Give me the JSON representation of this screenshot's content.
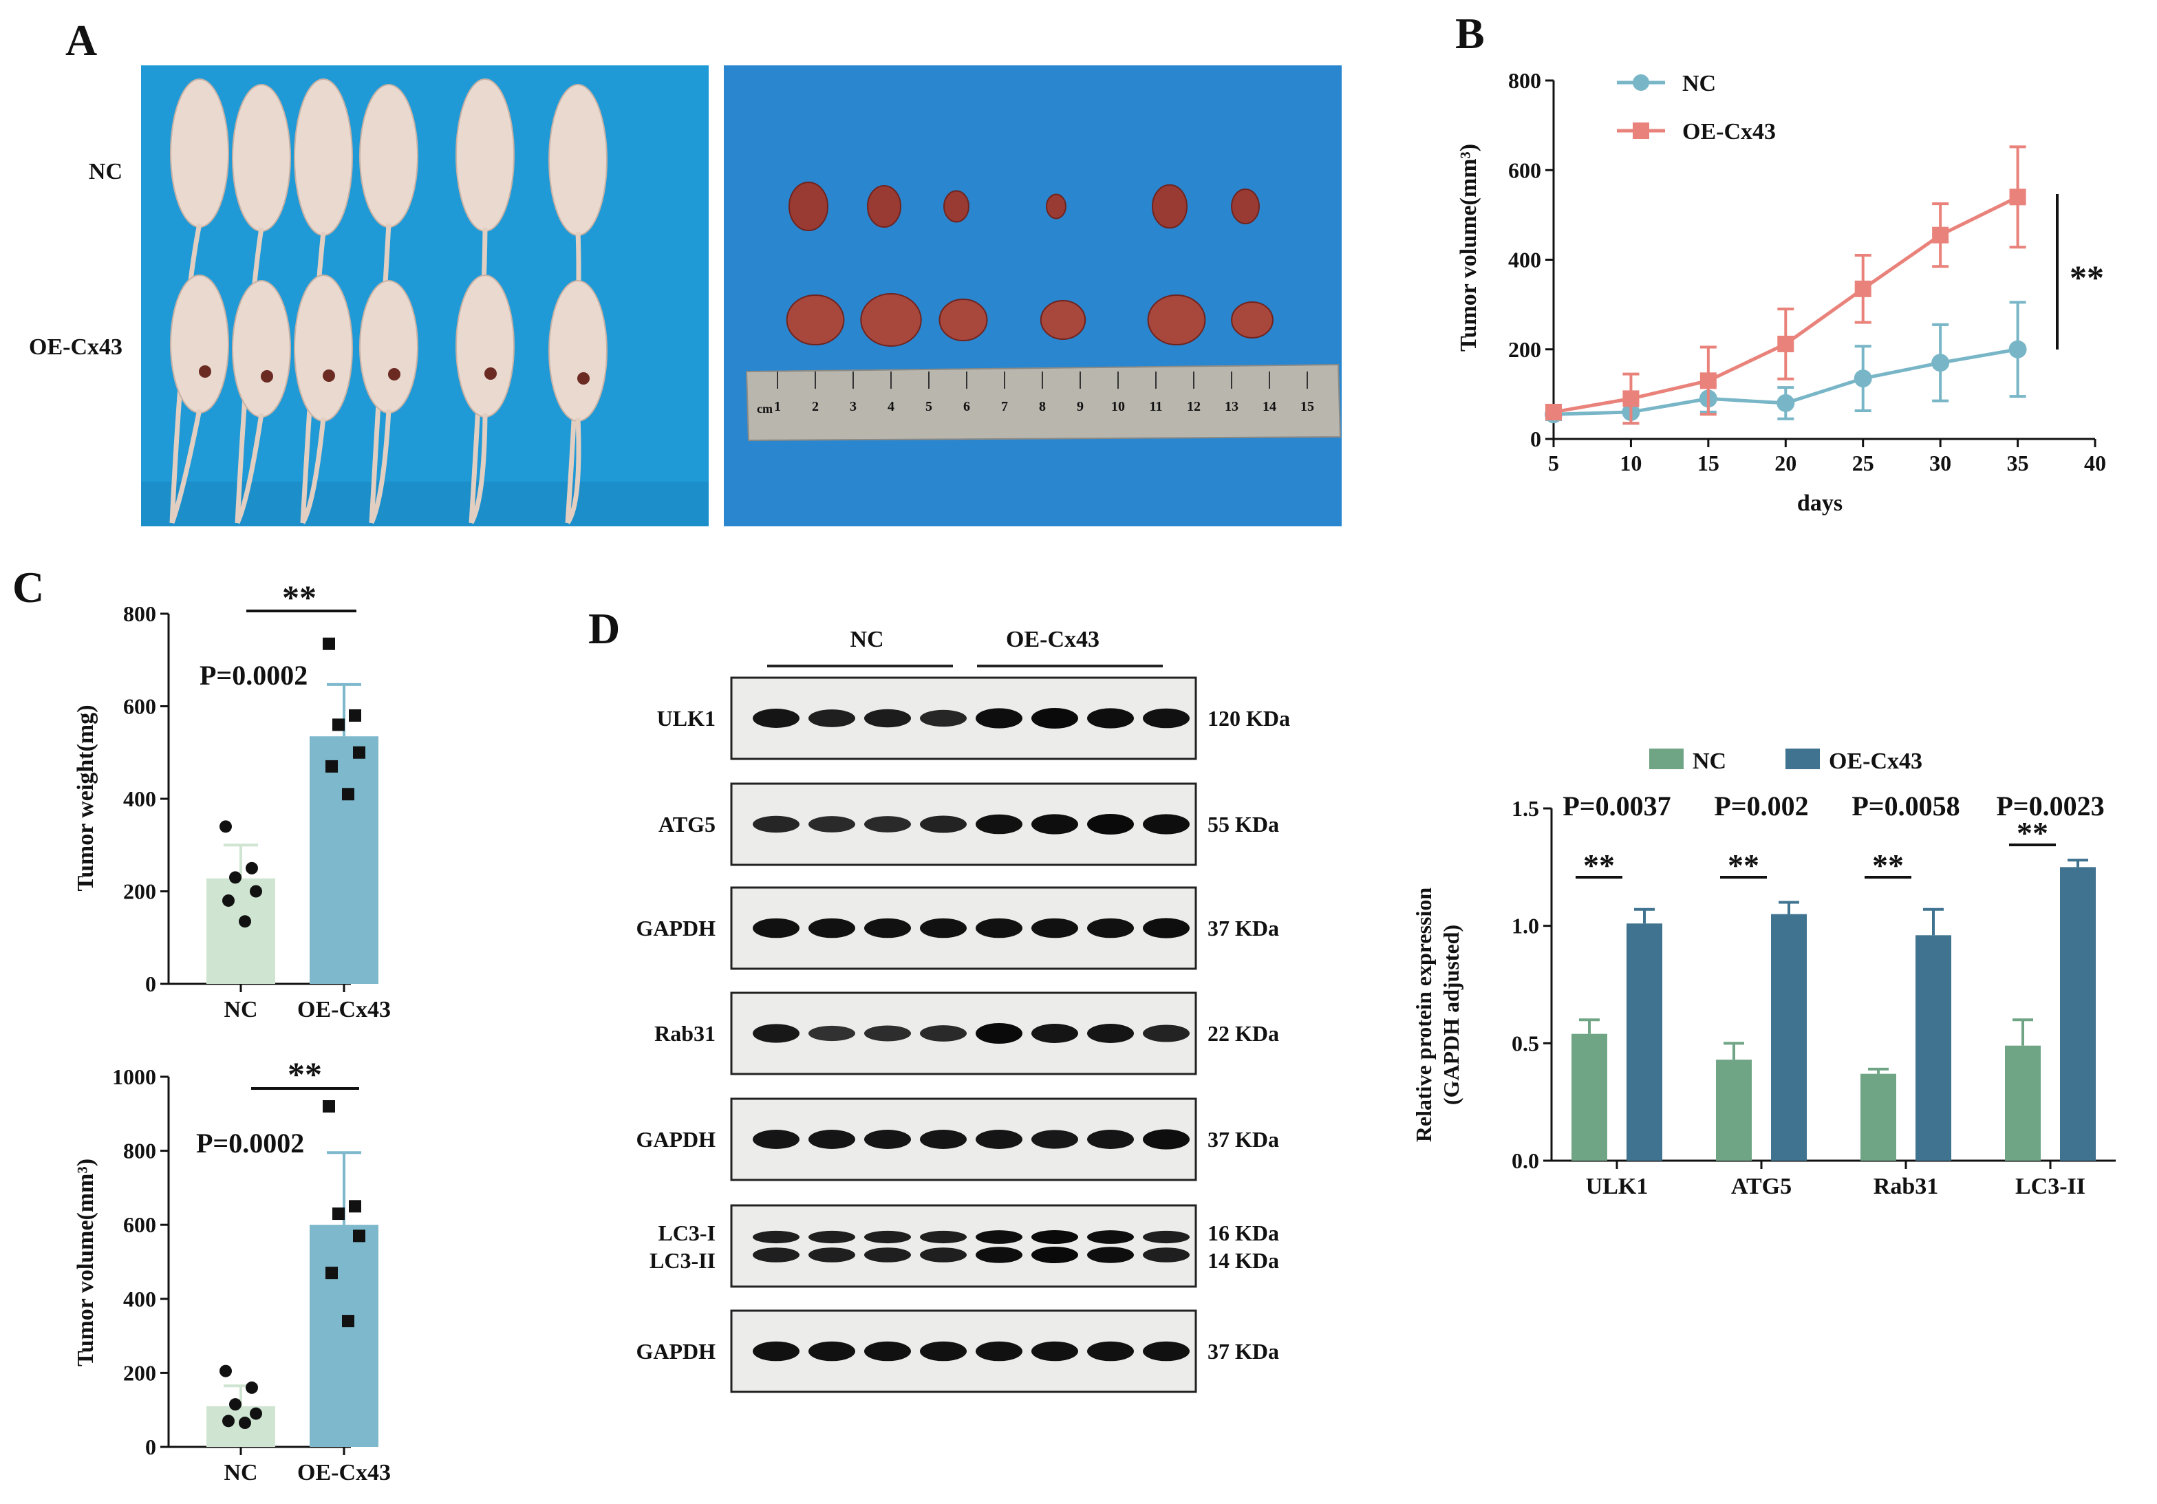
{
  "panels": {
    "A": "A",
    "B": "B",
    "C": "C",
    "D": "D"
  },
  "panel_a": {
    "row_labels": [
      "NC",
      "OE-Cx43"
    ],
    "ruler_numbers": [
      "1",
      "2",
      "3",
      "4",
      "5",
      "6",
      "7",
      "8",
      "9",
      "10",
      "11",
      "12",
      "13",
      "14",
      "15"
    ],
    "ruler_unit": "cm"
  },
  "colors": {
    "nc_line": "#78b6c7",
    "oe_line": "#e9827a",
    "nc_bar_c": "#cfe5d2",
    "oe_bar_c": "#7db8cc",
    "nc_bar_d": "#6fa485",
    "oe_bar_d": "#3f7390",
    "photo_bg": "#1f9ad6",
    "bench_bg": "#2a86cf"
  },
  "chart_data": [
    {
      "id": "B",
      "type": "line",
      "xlabel": "days",
      "ylabel": "Tumor volume(mm³)",
      "xlim": [
        5,
        40
      ],
      "ylim": [
        0,
        800
      ],
      "xticks": [
        5,
        10,
        15,
        20,
        25,
        30,
        35,
        40
      ],
      "yticks": [
        0,
        200,
        400,
        600,
        800
      ],
      "significance": "**",
      "series": [
        {
          "name": "NC",
          "x": [
            5,
            10,
            15,
            20,
            25,
            30,
            35
          ],
          "values": [
            55,
            60,
            90,
            80,
            135,
            170,
            200
          ],
          "err": [
            12,
            25,
            30,
            35,
            72,
            85,
            105
          ]
        },
        {
          "name": "OE-Cx43",
          "x": [
            5,
            10,
            15,
            20,
            25,
            30,
            35
          ],
          "values": [
            60,
            90,
            130,
            212,
            335,
            455,
            540
          ],
          "err": [
            15,
            55,
            75,
            78,
            75,
            70,
            112
          ]
        }
      ]
    },
    {
      "id": "C1",
      "type": "bar",
      "ylabel": "Tumor weight(mg)",
      "ylim": [
        0,
        800
      ],
      "yticks": [
        0,
        200,
        400,
        600,
        800
      ],
      "categories": [
        "NC",
        "OE-Cx43"
      ],
      "values": [
        228,
        535
      ],
      "err": [
        72,
        112
      ],
      "points": [
        [
          340,
          250,
          230,
          200,
          180,
          135
        ],
        [
          735,
          580,
          560,
          500,
          470,
          410
        ]
      ],
      "pvalue": "P=0.0002",
      "significance": "**"
    },
    {
      "id": "C2",
      "type": "bar",
      "ylabel": "Tumor volume(mm³)",
      "ylim": [
        0,
        1000
      ],
      "yticks": [
        0,
        200,
        400,
        600,
        800,
        1000
      ],
      "categories": [
        "NC",
        "OE-Cx43"
      ],
      "values": [
        110,
        600
      ],
      "err": [
        55,
        195
      ],
      "points": [
        [
          205,
          160,
          115,
          90,
          70,
          65
        ],
        [
          920,
          650,
          630,
          570,
          470,
          340
        ]
      ],
      "pvalue": "P=0.0002",
      "significance": "**"
    },
    {
      "id": "D",
      "type": "bar",
      "ylabel": "Relative protein expression\n(GAPDH adjusted)",
      "ylim": [
        0,
        1.5
      ],
      "yticks": [
        0.0,
        0.5,
        1.0,
        1.5
      ],
      "ytick_labels": [
        "0.0",
        "0.5",
        "1.0",
        "1.5"
      ],
      "categories": [
        "ULK1",
        "ATG5",
        "Rab31",
        "LC3-II"
      ],
      "series": [
        {
          "name": "NC",
          "values": [
            0.54,
            0.43,
            0.37,
            0.49
          ],
          "err": [
            0.06,
            0.07,
            0.02,
            0.11
          ]
        },
        {
          "name": "OE-Cx43",
          "values": [
            1.01,
            1.05,
            0.96,
            1.25
          ],
          "err": [
            0.06,
            0.05,
            0.11,
            0.03
          ]
        }
      ],
      "pvalues": [
        "P=0.0037",
        "P=0.002",
        "P=0.0058",
        "P=0.0023"
      ],
      "significance": [
        "**",
        "**",
        "**",
        "**"
      ]
    }
  ],
  "western": {
    "group_labels": [
      "NC",
      "OE-Cx43"
    ],
    "blots": [
      {
        "label": "ULK1",
        "size": "120 KDa",
        "intensity": [
          0.85,
          0.7,
          0.75,
          0.6,
          0.95,
          1.0,
          0.95,
          0.9
        ]
      },
      {
        "label": "ATG5",
        "size": "55 KDa",
        "intensity": [
          0.6,
          0.55,
          0.55,
          0.65,
          0.9,
          0.95,
          1.0,
          0.95
        ]
      },
      {
        "label": "GAPDH",
        "size": "37 KDa",
        "intensity": [
          0.9,
          0.9,
          0.9,
          0.9,
          0.9,
          0.9,
          0.9,
          0.95
        ]
      },
      {
        "label": "Rab31",
        "size": "22 KDa",
        "intensity": [
          0.8,
          0.45,
          0.5,
          0.55,
          1.0,
          0.85,
          0.85,
          0.65
        ]
      },
      {
        "label": "GAPDH",
        "size": "37 KDa",
        "intensity": [
          0.85,
          0.85,
          0.85,
          0.85,
          0.85,
          0.8,
          0.85,
          0.95
        ]
      },
      {
        "labels": [
          "LC3-I",
          "LC3-II"
        ],
        "sizes": [
          "16 KDa",
          "14 KDa"
        ],
        "intensity": [
          0.7,
          0.7,
          0.7,
          0.7,
          0.95,
          1.0,
          0.95,
          0.7
        ]
      },
      {
        "label": "GAPDH",
        "size": "37 KDa",
        "intensity": [
          0.9,
          0.9,
          0.9,
          0.9,
          0.9,
          0.9,
          0.9,
          0.9
        ]
      }
    ]
  }
}
